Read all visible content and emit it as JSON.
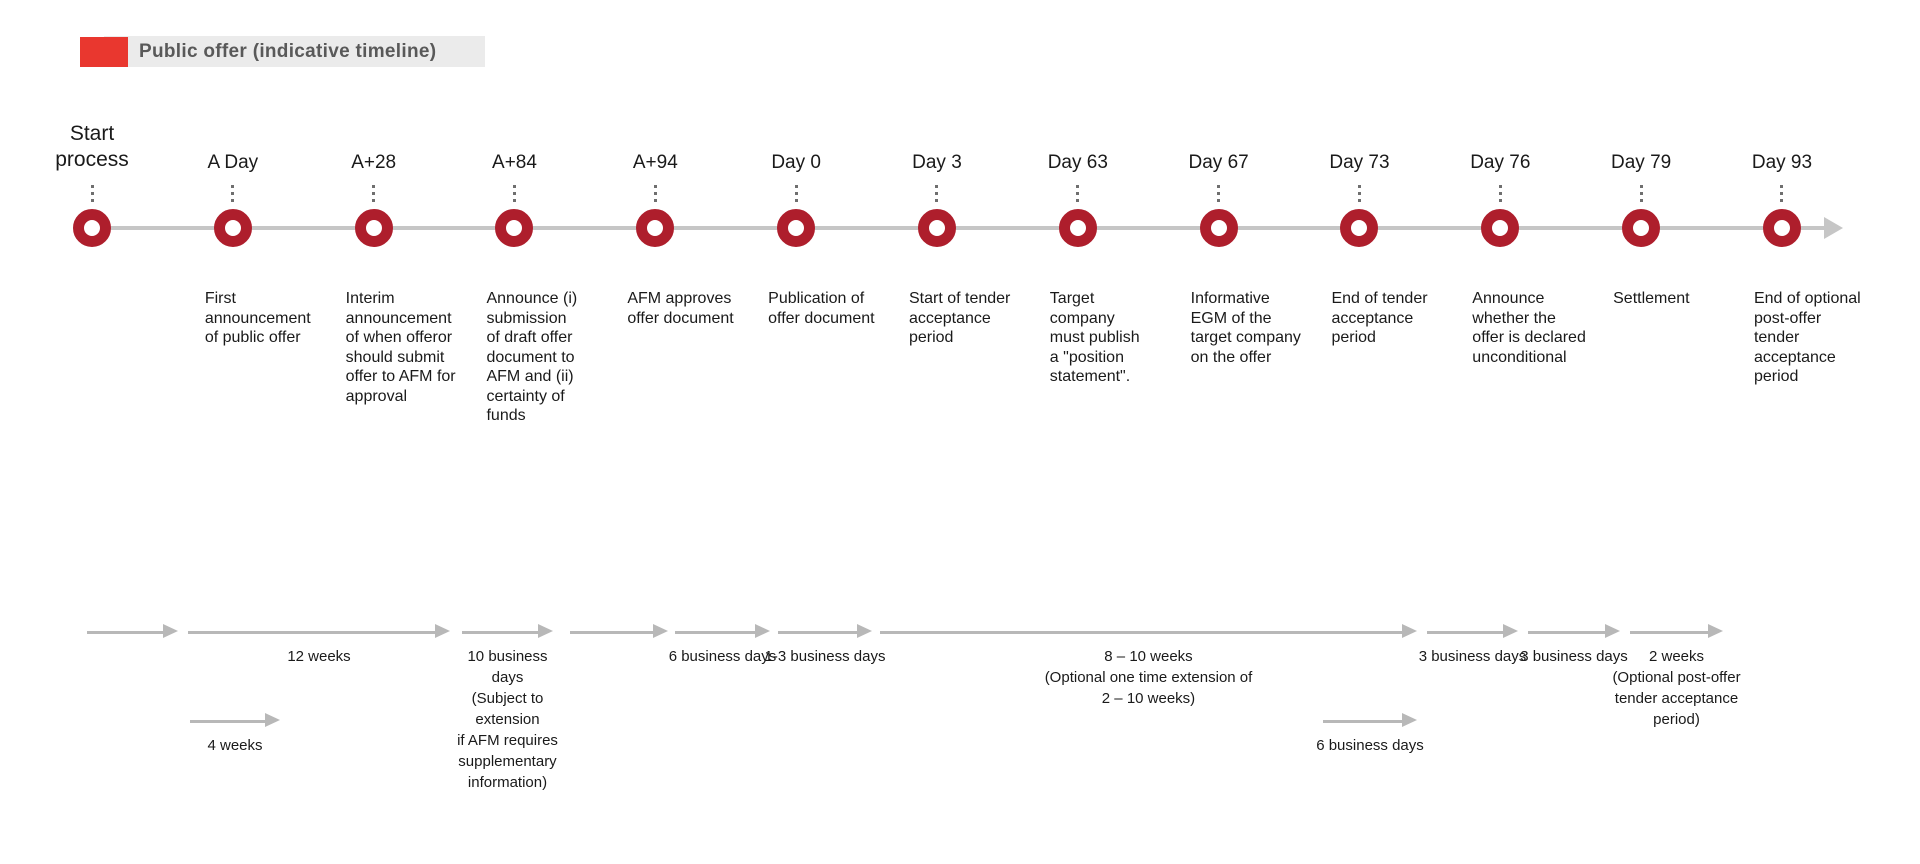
{
  "title": {
    "label": "Public offer (indicative timeline)"
  },
  "timeline": {
    "milestones": [
      {
        "date": "Start\nprocess",
        "description": ""
      },
      {
        "date": "A Day",
        "description": "First\nannouncement\nof public offer"
      },
      {
        "date": "A+28",
        "description": "Interim\nannouncement\nof when offeror\nshould submit\noffer to AFM for\napproval"
      },
      {
        "date": "A+84",
        "description": "Announce (i)\nsubmission\nof draft offer\ndocument to\nAFM and (ii)\ncertainty of\nfunds"
      },
      {
        "date": "A+94",
        "description": "AFM approves\noffer document"
      },
      {
        "date": "Day 0",
        "description": "Publication of\noffer document"
      },
      {
        "date": "Day 3",
        "description": "Start of tender\nacceptance\nperiod"
      },
      {
        "date": "Day 63",
        "description": "Target\ncompany\nmust publish\na \"position\nstatement\"."
      },
      {
        "date": "Day 67",
        "description": "Informative\nEGM of the\ntarget company\non the offer"
      },
      {
        "date": "Day 73",
        "description": "End of tender\nacceptance\nperiod"
      },
      {
        "date": "Day 76",
        "description": "Announce\nwhether the\noffer is declared\nunconditional"
      },
      {
        "date": "Day 79",
        "description": "Settlement"
      },
      {
        "date": "Day 93",
        "description": "End of optional\npost-offer\ntender\nacceptance\nperiod"
      }
    ]
  },
  "duration_arrows": {
    "row1": [
      {
        "label": ""
      },
      {
        "label": "12 weeks"
      },
      {
        "label": "10 business\ndays\n(Subject to\nextension\nif AFM requires\nsupplementary\ninformation)"
      },
      {
        "label": ""
      },
      {
        "label": "6 business days"
      },
      {
        "label": "1-3 business days"
      },
      {
        "label": "8 – 10 weeks\n(Optional one time extension of\n2 – 10 weeks)"
      },
      {
        "label": "3 business days"
      },
      {
        "label": "3 business days"
      },
      {
        "label": "2 weeks\n(Optional post-offer\ntender acceptance\nperiod)"
      }
    ],
    "row2": [
      {
        "label": "4 weeks"
      },
      {
        "label": "6 business days"
      }
    ]
  },
  "colors": {
    "accent_red": "#E9372F",
    "marker_crimson": "#AE1E2C",
    "axis_gray": "#C6C6C6",
    "arrow_gray": "#B8B8B8",
    "title_text": "#595959",
    "title_bar_bg": "#EBEBEB",
    "body_text": "#1A1A1A"
  }
}
